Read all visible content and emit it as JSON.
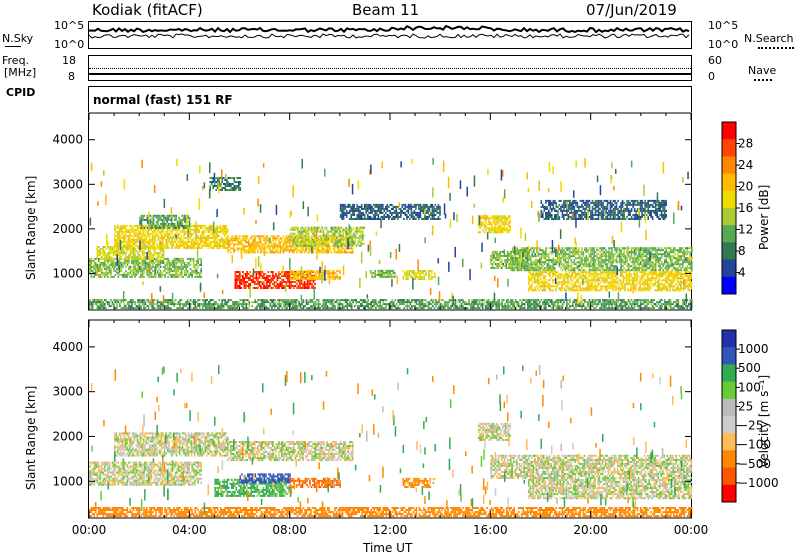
{
  "header": {
    "station": "Kodiak (fitACF)",
    "beam": "Beam 11",
    "date": "07/Jun/2019"
  },
  "panels": {
    "noise": {
      "left_label": "N.Sky",
      "right_label": "N.Search",
      "left_ticks": [
        "10^5",
        "10^0"
      ],
      "right_ticks": [
        "10^5",
        "10^0"
      ]
    },
    "freq": {
      "left_label_1": "Freq.",
      "left_label_2": "[MHz]",
      "right_label": "Nave",
      "left_ticks": [
        "18",
        "8"
      ],
      "right_ticks": [
        "60",
        "0"
      ]
    },
    "cpid": {
      "label": "CPID",
      "text": "normal (fast) 151 RF"
    }
  },
  "power_colorbar": {
    "label": "Power [dB]",
    "ticks": [
      "28",
      "24",
      "20",
      "16",
      "12",
      "8",
      "4"
    ],
    "colors": [
      "#ff0000",
      "#ff4400",
      "#ff8800",
      "#ffbb00",
      "#eedd00",
      "#aacc33",
      "#55aa55",
      "#337755",
      "#224499",
      "#0000ff"
    ]
  },
  "velocity_colorbar": {
    "label": "Velocity [m s⁻¹]",
    "ticks": [
      "1000",
      "500",
      "100",
      "25",
      "−25",
      "−100",
      "−500",
      "−1000"
    ],
    "colors": [
      "#2233aa",
      "#3355bb",
      "#33aa55",
      "#66cc33",
      "#bbbbbb",
      "#cccccc",
      "#ffbb55",
      "#ff8800",
      "#ff5500",
      "#ff0000"
    ]
  },
  "chart_data": [
    {
      "type": "heatmap",
      "title": "Power",
      "ylabel": "Slant Range [km]",
      "xlabel": "Time UT",
      "ylim": [
        180,
        4600
      ],
      "xlim": [
        0,
        24
      ],
      "x_ticks": [
        "00:00",
        "04:00",
        "08:00",
        "12:00",
        "16:00",
        "20:00",
        "00:00"
      ],
      "y_ticks": [
        1000,
        2000,
        3000,
        4000
      ],
      "value_unit": "dB",
      "regions": [
        {
          "t0": 0.0,
          "t1": 4.5,
          "r0": 900,
          "r1": 1350,
          "value": 14
        },
        {
          "t0": 0.3,
          "t1": 3.0,
          "r0": 1300,
          "r1": 1600,
          "value": 18
        },
        {
          "t0": 1.0,
          "t1": 5.5,
          "r0": 1550,
          "r1": 2050,
          "value": 20
        },
        {
          "t0": 2.0,
          "t1": 4.0,
          "r0": 2000,
          "r1": 2300,
          "value": 12
        },
        {
          "t0": 5.5,
          "t1": 10.5,
          "r0": 1450,
          "r1": 1850,
          "value": 22
        },
        {
          "t0": 8.0,
          "t1": 11.0,
          "r0": 1600,
          "r1": 2050,
          "value": 16
        },
        {
          "t0": 5.8,
          "t1": 9.0,
          "r0": 650,
          "r1": 1050,
          "value": 30
        },
        {
          "t0": 8.0,
          "t1": 10.0,
          "r0": 850,
          "r1": 1050,
          "value": 22
        },
        {
          "t0": 11.2,
          "t1": 12.2,
          "r0": 900,
          "r1": 1050,
          "value": 14
        },
        {
          "t0": 12.5,
          "t1": 13.8,
          "r0": 850,
          "r1": 1050,
          "value": 18
        },
        {
          "t0": 15.5,
          "t1": 16.8,
          "r0": 1900,
          "r1": 2300,
          "value": 20
        },
        {
          "t0": 16.0,
          "t1": 17.5,
          "r0": 1100,
          "r1": 1500,
          "value": 14
        },
        {
          "t0": 16.8,
          "t1": 24.0,
          "r0": 1050,
          "r1": 1550,
          "value": 14
        },
        {
          "t0": 17.5,
          "t1": 24.0,
          "r0": 600,
          "r1": 1050,
          "value": 20
        },
        {
          "t0": 4.8,
          "t1": 6.0,
          "r0": 2850,
          "r1": 3150,
          "value": 10
        },
        {
          "t0": 10.0,
          "t1": 14.0,
          "r0": 2200,
          "r1": 2550,
          "value": 8
        },
        {
          "t0": 18.0,
          "t1": 23.0,
          "r0": 2200,
          "r1": 2650,
          "value": 8
        },
        {
          "t0": 0.0,
          "t1": 24.0,
          "r0": 200,
          "r1": 420,
          "value": 12
        }
      ]
    },
    {
      "type": "heatmap",
      "title": "Velocity",
      "ylabel": "Slant Range [km]",
      "xlabel": "Time UT",
      "ylim": [
        180,
        4600
      ],
      "xlim": [
        0,
        24
      ],
      "x_ticks": [
        "00:00",
        "04:00",
        "08:00",
        "12:00",
        "16:00",
        "20:00",
        "00:00"
      ],
      "y_ticks": [
        1000,
        2000,
        3000,
        4000
      ],
      "value_unit": "m s⁻¹",
      "regions": [
        {
          "t0": 0.0,
          "t1": 4.5,
          "r0": 900,
          "r1": 1400,
          "value": 0
        },
        {
          "t0": 1.0,
          "t1": 5.5,
          "r0": 1550,
          "r1": 2050,
          "value": 0
        },
        {
          "t0": 5.5,
          "t1": 10.5,
          "r0": 1450,
          "r1": 1900,
          "value": 0
        },
        {
          "t0": 5.0,
          "t1": 8.0,
          "r0": 650,
          "r1": 1050,
          "value": 80
        },
        {
          "t0": 6.0,
          "t1": 8.0,
          "r0": 950,
          "r1": 1150,
          "value": 300
        },
        {
          "t0": 8.0,
          "t1": 10.0,
          "r0": 850,
          "r1": 1050,
          "value": -300
        },
        {
          "t0": 12.5,
          "t1": 13.8,
          "r0": 850,
          "r1": 1050,
          "value": -150
        },
        {
          "t0": 15.5,
          "t1": 16.8,
          "r0": 1900,
          "r1": 2300,
          "value": 0
        },
        {
          "t0": 16.0,
          "t1": 24.0,
          "r0": 1050,
          "r1": 1550,
          "value": 0
        },
        {
          "t0": 17.5,
          "t1": 24.0,
          "r0": 600,
          "r1": 1050,
          "value": 0
        },
        {
          "t0": 0.0,
          "t1": 24.0,
          "r0": 200,
          "r1": 420,
          "value": -200
        }
      ]
    }
  ]
}
